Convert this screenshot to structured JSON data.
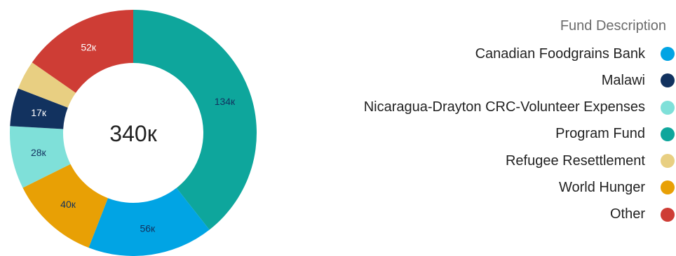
{
  "chart_data": {
    "type": "donut",
    "total_label": "340к",
    "legend_title": "Fund Description",
    "legend_placement": "right",
    "series": [
      {
        "name": "Canadian Foodgrains Bank",
        "color": "#01a4e4"
      },
      {
        "name": "Malawi",
        "color": "#12325f"
      },
      {
        "name": "Nicaragua-Drayton CRC-Volunteer Expenses",
        "color": "#7fe0d9"
      },
      {
        "name": "Program Fund",
        "color": "#0ea69c"
      },
      {
        "name": "Refugee Resettlement",
        "color": "#e8cf82"
      },
      {
        "name": "World Hunger",
        "color": "#e8a005"
      },
      {
        "name": "Other",
        "color": "#ce3d35"
      }
    ],
    "slices": [
      {
        "name": "Program Fund",
        "value": 134,
        "label": "134к",
        "color": "#0ea69c",
        "label_color": "#12325f"
      },
      {
        "name": "Canadian Foodgrains Bank",
        "value": 56,
        "label": "56к",
        "color": "#01a4e4",
        "label_color": "#12325f"
      },
      {
        "name": "World Hunger",
        "value": 40,
        "label": "40к",
        "color": "#e8a005",
        "label_color": "#12325f"
      },
      {
        "name": "Nicaragua-Drayton CRC-Volunteer Expenses",
        "value": 28,
        "label": "28к",
        "color": "#7fe0d9",
        "label_color": "#12325f"
      },
      {
        "name": "Malawi",
        "value": 17,
        "label": "17к",
        "color": "#12325f",
        "label_color": "#ffffff"
      },
      {
        "name": "Refugee Resettlement",
        "value": 13,
        "label": "",
        "color": "#e8cf82",
        "label_color": "#12325f"
      },
      {
        "name": "Other",
        "value": 52,
        "label": "52к",
        "color": "#ce3d35",
        "label_color": "#ffffff"
      }
    ]
  }
}
